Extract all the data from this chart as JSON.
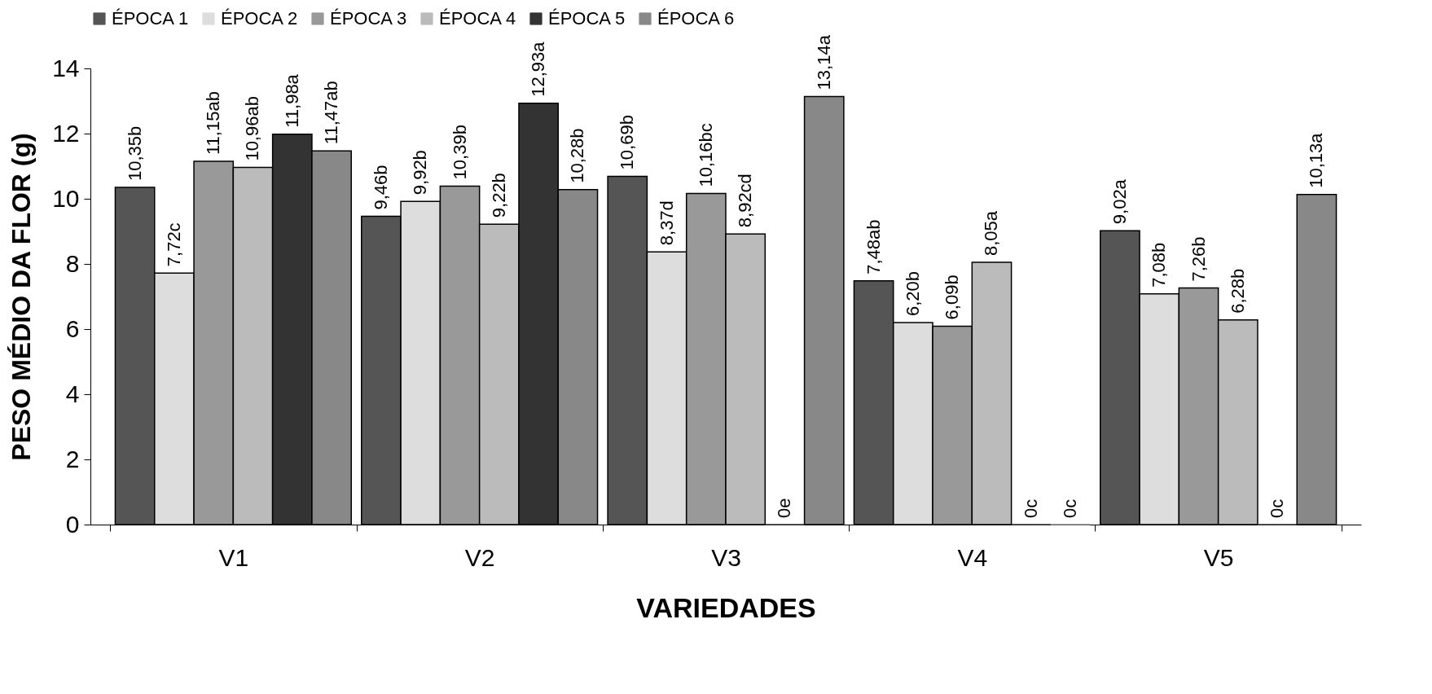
{
  "chart_data": {
    "type": "bar",
    "xlabel": "VARIEDADES",
    "ylabel": "PESO MÉDIO DA FLOR (g)",
    "categories": [
      "V1",
      "V2",
      "V3",
      "V4",
      "V5"
    ],
    "series": [
      {
        "name": "ÉPOCA 1",
        "color": "#555555",
        "values": [
          10.35,
          9.46,
          10.69,
          7.48,
          9.02
        ],
        "value_labels": [
          "10,35b",
          "9,46b",
          "10,69b",
          "7,48ab",
          "9,02a"
        ]
      },
      {
        "name": "ÉPOCA 2",
        "color": "#dddddd",
        "values": [
          7.72,
          9.92,
          8.37,
          6.2,
          7.08
        ],
        "value_labels": [
          "7,72c",
          "9,92b",
          "8,37d",
          "6,20b",
          "7,08b"
        ]
      },
      {
        "name": "ÉPOCA 3",
        "color": "#999999",
        "values": [
          11.15,
          10.39,
          10.16,
          6.09,
          7.26
        ],
        "value_labels": [
          "11,15ab",
          "10,39b",
          "10,16bc",
          "6,09b",
          "7,26b"
        ]
      },
      {
        "name": "ÉPOCA 4",
        "color": "#bbbbbb",
        "values": [
          10.96,
          9.22,
          8.92,
          8.05,
          6.28
        ],
        "value_labels": [
          "10,96ab",
          "9,22b",
          "8,92cd",
          "8,05a",
          "6,28b"
        ]
      },
      {
        "name": "ÉPOCA 5",
        "color": "#333333",
        "values": [
          11.98,
          12.93,
          0,
          0,
          0
        ],
        "value_labels": [
          "11,98a",
          "12,93a",
          "0e",
          "0c",
          "0c"
        ]
      },
      {
        "name": "ÉPOCA 6",
        "color": "#888888",
        "values": [
          11.47,
          10.28,
          13.14,
          0,
          10.13
        ],
        "value_labels": [
          "11,47ab",
          "10,28b",
          "13,14a",
          "0c",
          "10,13a"
        ]
      }
    ],
    "ylim": [
      0,
      14
    ],
    "yticks": [
      0,
      2,
      4,
      6,
      8,
      10,
      12,
      14
    ],
    "grid": false,
    "legend": "top"
  }
}
